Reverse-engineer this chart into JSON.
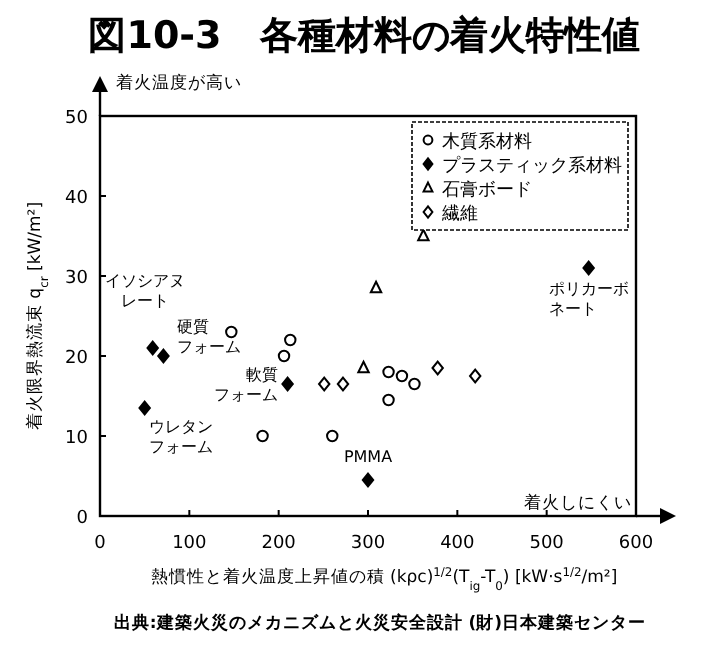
{
  "chart_data": {
    "type": "scatter",
    "title": "図10-3　各種材料の着火特性値",
    "xlabel": "熱慣性と着火温度上昇値の積 (kρc)$^{1/2}$(T$_{ig}$-T$_{0}$) [kW·s$^{1/2}$/m²]",
    "ylabel": "着火限界熱流束 q$_{cr}$ [kW/m²]",
    "xlim": [
      0,
      600
    ],
    "ylim": [
      0,
      50
    ],
    "xticks": [
      0,
      100,
      200,
      300,
      400,
      500,
      600
    ],
    "yticks": [
      0,
      10,
      20,
      30,
      40,
      50
    ],
    "grid": false,
    "legend": "top right",
    "series": [
      {
        "name": "木質系材料",
        "marker": "circle",
        "color": "#ffffff",
        "x": [
          147,
          213,
          206,
          182,
          260,
          323,
          338,
          352,
          323
        ],
        "values": [
          23,
          22,
          20,
          10,
          10,
          18,
          17.5,
          16.5,
          14.5
        ]
      },
      {
        "name": "プラスティック系材料",
        "marker": "diamond",
        "color": "#000000",
        "x": [
          59,
          71,
          50,
          210,
          300,
          547
        ],
        "values": [
          21,
          20,
          13.5,
          16.5,
          4.5,
          31
        ]
      },
      {
        "name": "石膏ボード",
        "marker": "triangle",
        "color": "#ffffff",
        "x": [
          309,
          295,
          362
        ],
        "values": [
          28.5,
          18.5,
          35
        ]
      },
      {
        "name": "繊維",
        "marker": "diamond",
        "color": "#ffffff",
        "x": [
          251,
          272,
          378,
          420
        ],
        "values": [
          16.5,
          16.5,
          18.5,
          17.5
        ]
      }
    ],
    "annotations": [
      {
        "text": "イソシアヌレート",
        "x": 59,
        "y": 21
      },
      {
        "text": "硬質フォーム",
        "x": 71,
        "y": 20
      },
      {
        "text": "ウレタンフォーム",
        "x": 50,
        "y": 13.5
      },
      {
        "text": "軟質フォーム",
        "x": 210,
        "y": 16.5
      },
      {
        "text": "PMMA",
        "x": 300,
        "y": 4.5
      },
      {
        "text": "ポリカーボネート",
        "x": 547,
        "y": 31
      },
      "着火温度が高い",
      "着火しにくい",
      "出典:建築火災のメカニズムと火災安全設計 (財)日本建築センター"
    ]
  }
}
